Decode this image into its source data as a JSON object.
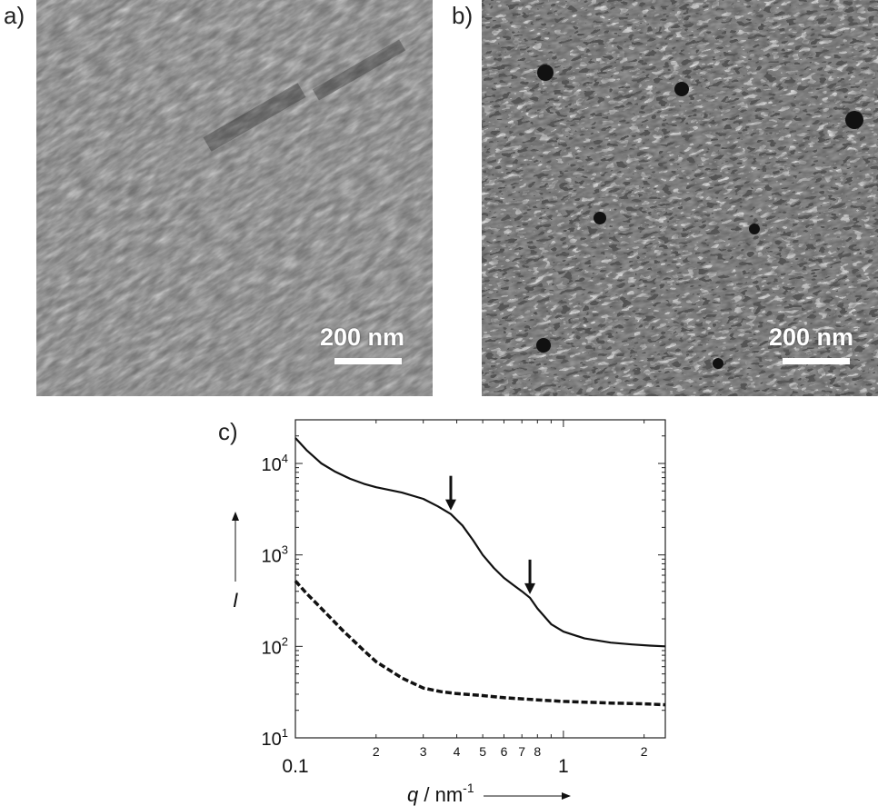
{
  "panels": {
    "a": {
      "label": "a)",
      "scale_text": "200 nm"
    },
    "b": {
      "label": "b)",
      "scale_text": "200 nm"
    },
    "c": {
      "label": "c)"
    }
  },
  "chart_data": {
    "type": "line",
    "xscale": "log",
    "yscale": "log",
    "xlim": [
      0.1,
      2.4
    ],
    "ylim": [
      10,
      30000
    ],
    "xlabel_var": "q",
    "xlabel_unit": "nm",
    "xlabel_exponent": "-1",
    "ylabel": "I",
    "x_major_ticks": [
      {
        "value": 0.1,
        "label": "0.1"
      },
      {
        "value": 1,
        "label": "1"
      }
    ],
    "x_minor_ticks": [
      {
        "value": 0.2,
        "label": "2"
      },
      {
        "value": 0.3,
        "label": "3"
      },
      {
        "value": 0.4,
        "label": "4"
      },
      {
        "value": 0.5,
        "label": "5"
      },
      {
        "value": 0.6,
        "label": "6"
      },
      {
        "value": 0.7,
        "label": "7"
      },
      {
        "value": 0.8,
        "label": "8"
      },
      {
        "value": 2,
        "label": "2"
      }
    ],
    "y_ticks": [
      {
        "value": 10,
        "base": "10",
        "exp": "1"
      },
      {
        "value": 100,
        "base": "10",
        "exp": "2"
      },
      {
        "value": 1000,
        "base": "10",
        "exp": "3"
      },
      {
        "value": 10000,
        "base": "10",
        "exp": "4"
      }
    ],
    "series": [
      {
        "style": "solid",
        "color": "#111111",
        "points": [
          [
            0.1,
            19000
          ],
          [
            0.11,
            14000
          ],
          [
            0.125,
            10000
          ],
          [
            0.14,
            8200
          ],
          [
            0.16,
            6800
          ],
          [
            0.18,
            6000
          ],
          [
            0.2,
            5500
          ],
          [
            0.25,
            4800
          ],
          [
            0.3,
            4100
          ],
          [
            0.34,
            3400
          ],
          [
            0.38,
            2800
          ],
          [
            0.42,
            2100
          ],
          [
            0.46,
            1450
          ],
          [
            0.5,
            1000
          ],
          [
            0.55,
            720
          ],
          [
            0.6,
            560
          ],
          [
            0.65,
            470
          ],
          [
            0.7,
            400
          ],
          [
            0.75,
            340
          ],
          [
            0.8,
            260
          ],
          [
            0.9,
            175
          ],
          [
            1.0,
            145
          ],
          [
            1.2,
            122
          ],
          [
            1.5,
            110
          ],
          [
            1.8,
            105
          ],
          [
            2.1,
            102
          ],
          [
            2.4,
            100
          ]
        ]
      },
      {
        "style": "dashed",
        "color": "#111111",
        "points": [
          [
            0.1,
            520
          ],
          [
            0.11,
            380
          ],
          [
            0.125,
            260
          ],
          [
            0.15,
            150
          ],
          [
            0.18,
            90
          ],
          [
            0.2,
            68
          ],
          [
            0.25,
            45
          ],
          [
            0.3,
            35
          ],
          [
            0.35,
            32
          ],
          [
            0.4,
            30.5
          ],
          [
            0.5,
            29
          ],
          [
            0.6,
            27.5
          ],
          [
            0.8,
            26
          ],
          [
            1.0,
            25
          ],
          [
            1.5,
            24
          ],
          [
            2.0,
            23.5
          ],
          [
            2.4,
            23
          ]
        ]
      }
    ],
    "annotations": [
      {
        "type": "arrow",
        "x": 0.38,
        "y": 2800
      },
      {
        "type": "arrow",
        "x": 0.75,
        "y": 340
      }
    ]
  }
}
